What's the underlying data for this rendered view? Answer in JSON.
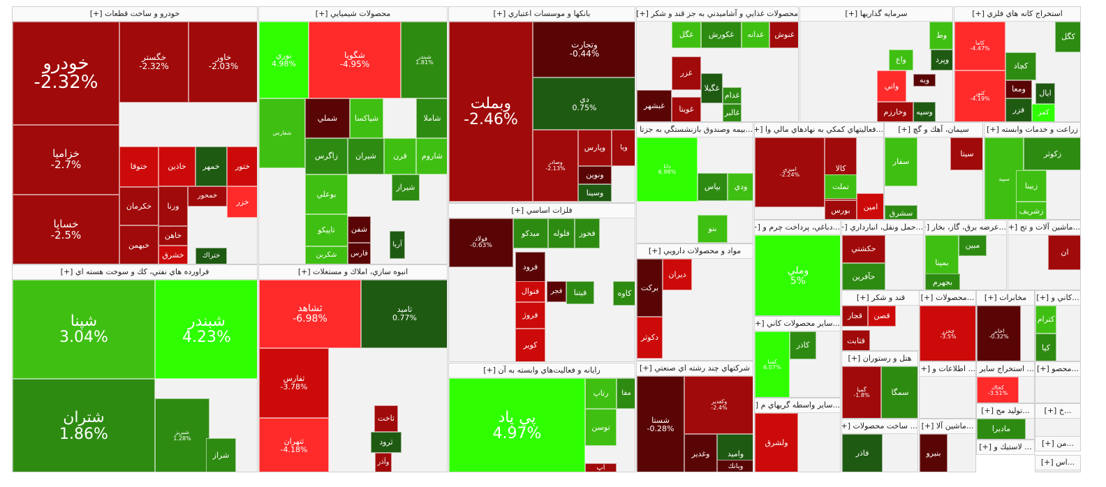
{
  "palette": {
    "neg3": "#ff2a2a",
    "neg2": "#cc0a0a",
    "neg1": "#a00a0a",
    "neg0": "#5a0505",
    "pos0": "#1f5a12",
    "pos1": "#2e8b12",
    "pos2": "#3fbf12",
    "pos3": "#2fff00"
  },
  "sectors": [
    {
      "title": "خودرو و ساخت قطعات [+]",
      "tiles": [
        {
          "symbol": "خودرو",
          "change": "-2.32%",
          "color": "neg1"
        },
        {
          "symbol": "خگستر",
          "change": "-2.32%",
          "color": "neg1"
        },
        {
          "symbol": "خاور",
          "change": "-2.03%",
          "color": "neg1"
        },
        {
          "symbol": "خزاميا",
          "change": "-2.7%",
          "color": "neg1"
        },
        {
          "symbol": "خساپا",
          "change": "-2.5%",
          "color": "neg1"
        },
        {
          "symbol": "ختوقا",
          "change": "",
          "color": "neg2"
        },
        {
          "symbol": "خكرمان",
          "change": "",
          "color": "neg1"
        },
        {
          "symbol": "خبهمن",
          "change": "",
          "color": "neg1"
        },
        {
          "symbol": "خاذين",
          "change": "",
          "color": "neg2"
        },
        {
          "symbol": "خمهر",
          "change": "",
          "color": "pos0"
        },
        {
          "symbol": "ختور",
          "change": "",
          "color": "neg2"
        },
        {
          "symbol": "ورنا",
          "change": "",
          "color": "neg1"
        },
        {
          "symbol": "خمحور",
          "change": "",
          "color": "neg1"
        },
        {
          "symbol": "خزر",
          "change": "",
          "color": "neg3"
        },
        {
          "symbol": "خاهن",
          "change": "",
          "color": "neg1"
        },
        {
          "symbol": "خشرق",
          "change": "",
          "color": "neg2"
        },
        {
          "symbol": "ختراك",
          "change": "",
          "color": "pos0"
        }
      ]
    },
    {
      "title": "محصولات شيميايي [+]",
      "tiles": [
        {
          "symbol": "نوري",
          "change": "4.98%",
          "color": "pos3"
        },
        {
          "symbol": "شگويا",
          "change": "-4.95%",
          "color": "neg3"
        },
        {
          "symbol": "شبندر",
          "change": "1.81%",
          "color": "pos1"
        },
        {
          "symbol": "شفارس",
          "change": "",
          "color": "pos2"
        },
        {
          "symbol": "شملي",
          "change": "",
          "color": "neg0"
        },
        {
          "symbol": "شپاكسا",
          "change": "",
          "color": "pos2"
        },
        {
          "symbol": "شاملا",
          "change": "",
          "color": "pos1"
        },
        {
          "symbol": "زاگرس",
          "change": "",
          "color": "pos1"
        },
        {
          "symbol": "شيران",
          "change": "",
          "color": "pos1"
        },
        {
          "symbol": "قرن",
          "change": "",
          "color": "pos2"
        },
        {
          "symbol": "شاروم",
          "change": "",
          "color": "pos2"
        },
        {
          "symbol": "بوعلي",
          "change": "",
          "color": "pos2"
        },
        {
          "symbol": "تاپيكو",
          "change": "",
          "color": "pos2"
        },
        {
          "symbol": "شكربن",
          "change": "",
          "color": "pos2"
        },
        {
          "symbol": "شفن",
          "change": "",
          "color": "neg0"
        },
        {
          "symbol": "فارس",
          "change": "",
          "color": "neg0"
        },
        {
          "symbol": "شيراز",
          "change": "",
          "color": "pos1"
        },
        {
          "symbol": "آريا",
          "change": "",
          "color": "pos0"
        }
      ]
    },
    {
      "title": "بانكها و موسسات اعتباري [+]",
      "tiles": [
        {
          "symbol": "وبملت",
          "change": "-2.46%",
          "color": "neg1"
        },
        {
          "symbol": "وتجارت",
          "change": "-0.44%",
          "color": "neg0"
        },
        {
          "symbol": "دي",
          "change": "0.75%",
          "color": "pos0"
        },
        {
          "symbol": "وپارس",
          "change": "",
          "color": "neg1"
        },
        {
          "symbol": "ونوين",
          "change": "",
          "color": "neg0"
        },
        {
          "symbol": "وسينا",
          "change": "",
          "color": "pos0"
        },
        {
          "symbol": "وصادر",
          "change": "-2.13%",
          "color": "neg1"
        },
        {
          "symbol": "ويا",
          "change": "",
          "color": "neg1"
        }
      ]
    },
    {
      "title": "محصولات غذايي و آشاميدني به جز قند و شكر [+]",
      "tiles": [
        {
          "symbol": "غنوش",
          "change": "",
          "color": "neg1"
        },
        {
          "symbol": "غدانه",
          "change": "",
          "color": "pos2"
        },
        {
          "symbol": "غكورش",
          "change": "",
          "color": "pos1"
        },
        {
          "symbol": "غگل",
          "change": "",
          "color": "pos2"
        },
        {
          "symbol": "غزر",
          "change": "",
          "color": "neg1"
        },
        {
          "symbol": "غگيلا",
          "change": "",
          "color": "pos0"
        },
        {
          "symbol": "غدام",
          "change": "",
          "color": "pos1"
        },
        {
          "symbol": "غالبر",
          "change": "",
          "color": "pos1"
        },
        {
          "symbol": "غبشهر",
          "change": "",
          "color": "neg0"
        },
        {
          "symbol": "غويتا",
          "change": "",
          "color": "neg1"
        }
      ]
    },
    {
      "title": "سرمايه گذاريها [+]",
      "tiles": [
        {
          "symbol": "واتي",
          "change": "",
          "color": "neg3"
        },
        {
          "symbol": "وخارزم",
          "change": "",
          "color": "neg1"
        },
        {
          "symbol": "وسپه",
          "change": "",
          "color": "pos0"
        },
        {
          "symbol": "وبه",
          "change": "",
          "color": "neg0"
        },
        {
          "symbol": "وپرد",
          "change": "",
          "color": "pos0"
        },
        {
          "symbol": "واع",
          "change": "",
          "color": "pos2"
        },
        {
          "symbol": "وط",
          "change": "",
          "color": "pos2"
        }
      ]
    },
    {
      "title": "استخراج كانه هاي فلزي [+]",
      "tiles": [
        {
          "symbol": "كگل",
          "change": "",
          "color": "pos1"
        },
        {
          "symbol": "كچاد",
          "change": "",
          "color": "pos1"
        },
        {
          "symbol": "ومعا",
          "change": "",
          "color": "neg0"
        },
        {
          "symbol": "ايال",
          "change": "",
          "color": "pos0"
        },
        {
          "symbol": "فزر",
          "change": "",
          "color": "pos0"
        },
        {
          "symbol": "كمر",
          "change": "",
          "color": "pos3"
        },
        {
          "symbol": "كاما",
          "change": "-4.47%",
          "color": "neg3"
        },
        {
          "symbol": "كنور",
          "change": "-4.19%",
          "color": "neg3"
        }
      ]
    },
    {
      "title": "فراورده هاي نفتي، كك و سوخت هسته اي [+]",
      "tiles": [
        {
          "symbol": "شپنا",
          "change": "3.04%",
          "color": "pos2"
        },
        {
          "symbol": "شبندر",
          "change": "4.23%",
          "color": "pos3"
        },
        {
          "symbol": "شتران",
          "change": "1.86%",
          "color": "pos1"
        },
        {
          "symbol": "شبريز",
          "change": "1.28%",
          "color": "pos1"
        },
        {
          "symbol": "شراز",
          "change": "",
          "color": "pos1"
        }
      ]
    },
    {
      "title": "انبوه سازي، املاك و مستغلات [+]",
      "tiles": [
        {
          "symbol": "ثشاهد",
          "change": "-6.98%",
          "color": "neg3"
        },
        {
          "symbol": "ثاميد",
          "change": "0.77%",
          "color": "pos0"
        },
        {
          "symbol": "ثفارس",
          "change": "-3.78%",
          "color": "neg2"
        },
        {
          "symbol": "ثتهران",
          "change": "-4.18%",
          "color": "neg3"
        },
        {
          "symbol": "ثاخت",
          "change": "",
          "color": "neg1"
        },
        {
          "symbol": "وآذر",
          "change": "",
          "color": "neg1"
        },
        {
          "symbol": "ثرود",
          "change": "",
          "color": "pos0"
        }
      ]
    },
    {
      "title": "فلزات اساسي [+]",
      "tiles": [
        {
          "symbol": "فولاد",
          "change": "-0.63%",
          "color": "neg0"
        },
        {
          "symbol": "ميدكو",
          "change": "",
          "color": "pos1"
        },
        {
          "symbol": "فلوله",
          "change": "",
          "color": "pos1"
        },
        {
          "symbol": "فخوز",
          "change": "",
          "color": "pos1"
        },
        {
          "symbol": "فرود",
          "change": "",
          "color": "neg0"
        },
        {
          "symbol": "فنوال",
          "change": "",
          "color": "neg2"
        },
        {
          "symbol": "فجر",
          "change": "",
          "color": "neg0"
        },
        {
          "symbol": "فروژ",
          "change": "",
          "color": "neg2"
        },
        {
          "symbol": "كوير",
          "change": "",
          "color": "neg2"
        },
        {
          "symbol": "فيتنا",
          "change": "",
          "color": "pos1"
        },
        {
          "symbol": "كاوه",
          "change": "",
          "color": "pos1"
        }
      ]
    },
    {
      "title": "رايانه و فعاليت‌هاي وابسته به آن [+]",
      "tiles": [
        {
          "symbol": "پي پاد",
          "change": "4.97%",
          "color": "pos3"
        },
        {
          "symbol": "رتاپ",
          "change": "",
          "color": "pos2"
        },
        {
          "symbol": "توسن",
          "change": "",
          "color": "pos2"
        },
        {
          "symbol": "آپ",
          "change": "",
          "color": "neg1"
        },
        {
          "symbol": "مفا",
          "change": "",
          "color": "pos1"
        }
      ]
    },
    {
      "title": "...بيمه وصندوق بازنشستگي به جزتا [+]",
      "tiles": [
        {
          "symbol": "دانا",
          "change": "6.98%",
          "color": "pos3"
        },
        {
          "symbol": "بپاس",
          "change": "",
          "color": "pos1"
        },
        {
          "symbol": "ودي",
          "change": "",
          "color": "pos2"
        },
        {
          "symbol": "بنو",
          "change": "",
          "color": "pos2"
        }
      ]
    },
    {
      "title": "...فعاليتهاي كمكي به نهادهاي مالي وا [+]",
      "tiles": [
        {
          "symbol": "كالا",
          "change": "",
          "color": "neg1"
        },
        {
          "symbol": "تملت",
          "change": "",
          "color": "pos2"
        },
        {
          "symbol": "بورس",
          "change": "",
          "color": "neg1"
        },
        {
          "symbol": "امين",
          "change": "",
          "color": "neg2"
        },
        {
          "symbol": "اميزي",
          "change": "-2.24%",
          "color": "neg1"
        }
      ]
    },
    {
      "title": "سيمان، آهك و گچ [+]",
      "tiles": [
        {
          "symbol": "سيتا",
          "change": "",
          "color": "neg1"
        },
        {
          "symbol": "سفار",
          "change": "",
          "color": "pos2"
        },
        {
          "symbol": "سشرق",
          "change": "",
          "color": "pos1"
        }
      ]
    },
    {
      "title": "زراعت و خدمات وابسته [+]",
      "tiles": [
        {
          "symbol": "زكوثر",
          "change": "",
          "color": "pos1"
        },
        {
          "symbol": "سپيد",
          "change": "",
          "color": "pos2"
        },
        {
          "symbol": "زبينا",
          "change": "",
          "color": "pos2"
        },
        {
          "symbol": "زشريف",
          "change": "",
          "color": "pos2"
        }
      ]
    },
    {
      "title": "مواد و محصولات دارويي [+]",
      "tiles": [
        {
          "symbol": "بركت",
          "change": "",
          "color": "neg0"
        },
        {
          "symbol": "ديران",
          "change": "",
          "color": "neg2"
        },
        {
          "symbol": "دكوثر",
          "change": "",
          "color": "neg2"
        }
      ]
    },
    {
      "title": "...دباغي، پرداخت چرم و [+]",
      "tiles": [
        {
          "symbol": "وملي",
          "change": "5%",
          "color": "pos3"
        }
      ]
    },
    {
      "title": "...حمل ونقل، انبارداري [+]",
      "tiles": [
        {
          "symbol": "حكشتي",
          "change": "",
          "color": "neg1"
        },
        {
          "symbol": "حآفرين",
          "change": "",
          "color": "pos1"
        }
      ]
    },
    {
      "title": "...عرضه برق، گاز، بخار [+]",
      "tiles": [
        {
          "symbol": "بمپنا",
          "change": "",
          "color": "pos2"
        },
        {
          "symbol": "مبين",
          "change": "",
          "color": "pos1"
        },
        {
          "symbol": "بجهرم",
          "change": "",
          "color": "pos1"
        }
      ]
    },
    {
      "title": "...ماشين آلات و تج [+]",
      "tiles": [
        {
          "symbol": "ان",
          "change": "",
          "color": "neg1"
        }
      ]
    },
    {
      "title": "قند و شكر [+]",
      "tiles": [
        {
          "symbol": "قجار",
          "change": "",
          "color": "neg1"
        },
        {
          "symbol": "قصن",
          "change": "",
          "color": "neg2"
        },
        {
          "symbol": "قثابت",
          "change": "",
          "color": "neg1"
        }
      ]
    },
    {
      "title": "...محصولات [+]",
      "tiles": [
        {
          "symbol": "چخزر",
          "change": "-3.5%",
          "color": "neg2"
        }
      ]
    },
    {
      "title": "مخابرات [+]",
      "tiles": [
        {
          "symbol": "اخابر",
          "change": "-0.32%",
          "color": "neg0"
        }
      ]
    },
    {
      "title": "...كاني و [+]",
      "tiles": [
        {
          "symbol": "كترام",
          "change": "",
          "color": "pos2"
        },
        {
          "symbol": "كپا",
          "change": "",
          "color": "pos1"
        }
      ]
    },
    {
      "title": "...ساير محصولات كاني [+]",
      "tiles": [
        {
          "symbol": "كاذر",
          "change": "",
          "color": "pos1"
        },
        {
          "symbol": "كسا",
          "change": "6.07%",
          "color": "pos3"
        }
      ]
    },
    {
      "title": "هتل و رستوران [+]",
      "tiles": [
        {
          "symbol": "سمگا",
          "change": "",
          "color": "pos1"
        },
        {
          "symbol": "گمپا",
          "change": "-1.8%",
          "color": "neg1"
        }
      ]
    },
    {
      "title": "شركتهاي چند رشته اي صنعتي [+]",
      "tiles": [
        {
          "symbol": "شستا",
          "change": "-0.28%",
          "color": "neg0"
        },
        {
          "symbol": "وكغدير",
          "change": "-2.4%",
          "color": "neg1"
        },
        {
          "symbol": "واميد",
          "change": "",
          "color": "pos0"
        },
        {
          "symbol": "وغدير",
          "change": "",
          "color": "neg0"
        },
        {
          "symbol": "وبانك",
          "change": "",
          "color": "neg0"
        }
      ]
    },
    {
      "title": "...ساير واسطه گريهاي م [+]",
      "tiles": [
        {
          "symbol": "ولشرق",
          "change": "",
          "color": "neg2"
        }
      ]
    },
    {
      "title": "... ساخت محصولات [+]",
      "tiles": [
        {
          "symbol": "فاذر",
          "change": "",
          "color": "pos0"
        }
      ]
    },
    {
      "title": "...ماشين آلا [+]",
      "tiles": [
        {
          "symbol": "بنيرو",
          "change": "",
          "color": "neg0"
        }
      ]
    },
    {
      "title": "... اطلاعات و [+]",
      "tiles": []
    },
    {
      "title": "... استخراج ساير [+]",
      "tiles": [
        {
          "symbol": "كخاك",
          "change": "-3.51%",
          "color": "neg3"
        }
      ]
    },
    {
      "title": "...محصو [+]",
      "tiles": []
    },
    {
      "title": "...توليد مح [+]",
      "tiles": [
        {
          "symbol": "ماديرا",
          "change": "",
          "color": "pos1"
        }
      ]
    },
    {
      "title": "...خ [+]",
      "tiles": []
    },
    {
      "title": "...من [+]",
      "tiles": []
    },
    {
      "title": "... لاستيك و [+]",
      "tiles": []
    },
    {
      "title": "...اس [+]",
      "tiles": []
    }
  ]
}
